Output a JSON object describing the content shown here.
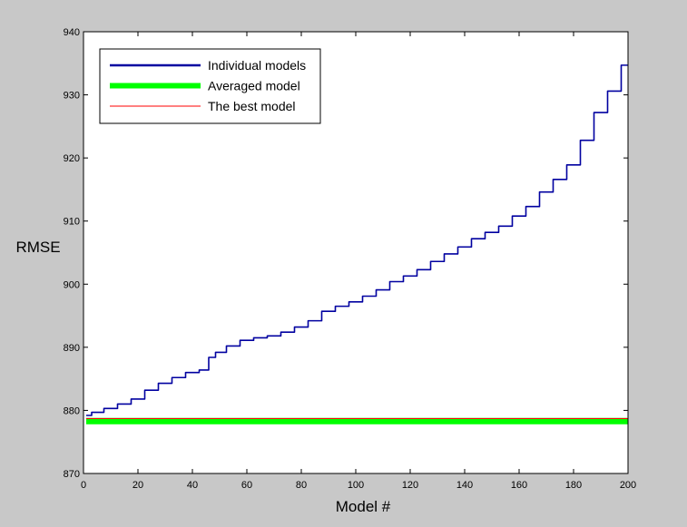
{
  "chart_data": {
    "type": "line",
    "title": "",
    "xlabel": "Model #",
    "ylabel": "RMSE",
    "xlim": [
      0,
      200
    ],
    "ylim": [
      870,
      940
    ],
    "xticks": [
      0,
      20,
      40,
      60,
      80,
      100,
      120,
      140,
      160,
      180,
      200
    ],
    "yticks": [
      870,
      880,
      890,
      900,
      910,
      920,
      930,
      940
    ],
    "grid": false,
    "legend_position": "top-left",
    "series": [
      {
        "name": "Individual models",
        "color": "#0000a0",
        "style": "thin",
        "x": [
          1,
          5,
          10,
          15,
          20,
          25,
          30,
          35,
          40,
          45,
          47,
          50,
          55,
          60,
          65,
          70,
          75,
          80,
          85,
          90,
          95,
          100,
          105,
          110,
          115,
          120,
          125,
          130,
          135,
          140,
          145,
          150,
          155,
          160,
          165,
          170,
          175,
          180,
          185,
          190,
          195,
          200
        ],
        "y": [
          879.2,
          879.7,
          880.3,
          881.0,
          881.8,
          883.2,
          884.3,
          885.2,
          886.0,
          886.4,
          888.4,
          889.2,
          890.2,
          891.1,
          891.5,
          891.8,
          892.4,
          893.2,
          894.2,
          895.7,
          896.5,
          897.2,
          898.1,
          899.1,
          900.4,
          901.3,
          902.3,
          903.6,
          904.8,
          905.9,
          907.2,
          908.2,
          909.2,
          910.8,
          912.3,
          914.6,
          916.6,
          918.9,
          922.8,
          927.2,
          930.6,
          934.7
        ]
      },
      {
        "name": "Averaged model",
        "color": "#00ff00",
        "style": "thick",
        "x": [
          1,
          200
        ],
        "y": [
          878.3,
          878.3
        ]
      },
      {
        "name": "The best model",
        "color": "#ff0000",
        "style": "thin",
        "x": [
          1,
          200
        ],
        "y": [
          878.7,
          878.7
        ]
      }
    ]
  }
}
